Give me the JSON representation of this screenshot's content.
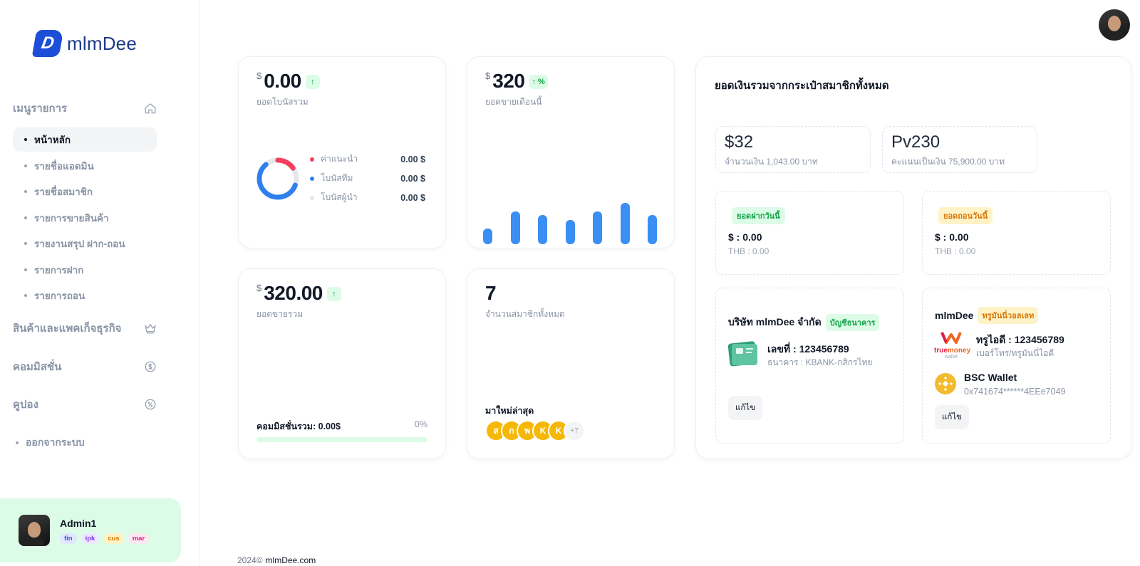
{
  "brand": {
    "name": "mlmDee",
    "logo_letter": "D"
  },
  "sidebar": {
    "sections": [
      {
        "label": "เมนูรายการ",
        "icon": "home-icon"
      },
      {
        "label": "สินค้าและแพคเก็จธุรกิจ",
        "icon": "crown-icon"
      },
      {
        "label": "คอมมิสชั่น",
        "icon": "dollar-circle-icon"
      },
      {
        "label": "คูปอง",
        "icon": "discount-icon"
      }
    ],
    "items": [
      {
        "label": "หน้าหลัก",
        "active": true
      },
      {
        "label": "รายชื่อแอดมิน"
      },
      {
        "label": "รายชื่อสมาชิก"
      },
      {
        "label": "รายการขายสินค้า"
      },
      {
        "label": "รายงานสรุป ฝาก-ถอน"
      },
      {
        "label": "รายการฝาก"
      },
      {
        "label": "รายการถอน"
      }
    ],
    "logout": "ออกจากระบบ"
  },
  "user": {
    "name": "Admin1",
    "tags": [
      {
        "label": "fin",
        "bg": "#e0e7ff",
        "color": "#3b5bdb"
      },
      {
        "label": "ipk",
        "bg": "#ede9fe",
        "color": "#7c3aed"
      },
      {
        "label": "cus",
        "bg": "#fef3c7",
        "color": "#d97706"
      },
      {
        "label": "mar",
        "bg": "#fce7f3",
        "color": "#db2777"
      }
    ]
  },
  "cards": {
    "bonus": {
      "currency": "$",
      "value": "0.00",
      "arrow": "↑",
      "label": "ยอดโบนัสรวม",
      "legend": [
        {
          "label": "ค่าแนะนำ",
          "value": "0.00 $",
          "color": "#f43f5e"
        },
        {
          "label": "โบนัสทีม",
          "value": "0.00 $",
          "color": "#2f80ed"
        },
        {
          "label": "โบนัสผู้นำ",
          "value": "0.00 $",
          "color": "#e5e7eb"
        }
      ]
    },
    "monthly_sales": {
      "currency": "$",
      "value": "320",
      "badge": "↑ %",
      "label": "ยอดขายเดือนนี้",
      "bars": [
        22,
        46,
        41,
        34,
        46,
        58,
        41
      ]
    },
    "total_sales": {
      "currency": "$",
      "value": "320.00",
      "arrow": "↑",
      "label": "ยอดขายรวม",
      "commission_label": "คอมมิสชั่นรวม: 0.00$",
      "commission_pct": "0%",
      "progress": 0
    },
    "members": {
      "value": "7",
      "label": "จำนวนสมาชิกทั้งหมด",
      "latest_label": "มาใหม่ล่าสุด",
      "latest": [
        "ส",
        "ก",
        "พ",
        "K",
        "K"
      ],
      "more": "+7"
    }
  },
  "wallet_panel": {
    "title": "ยอดเงินรวมจากกระเป๋าสมาชิกทั้งหมด",
    "money": {
      "value": "$32",
      "sub": "จำนวนเงิน 1,043.00 บาท"
    },
    "points": {
      "value": "Pv230",
      "sub": "คะแนนเป็นเงิน 75,900.00 บาท"
    },
    "deposit_today": {
      "pill": "ยอดฝากวันนี้",
      "amount": "$ : 0.00",
      "thb": "THB : 0.00"
    },
    "withdraw_today": {
      "pill": "ยอดถอนวันนี้",
      "amount": "$ : 0.00",
      "thb": "THB : 0.00"
    },
    "bank": {
      "company": "บริษัท mlmDee จำกัด",
      "pill": "บัญชีธนาคาร",
      "account": "เลขที่ : 123456789",
      "bank_name": "ธนาคาร : KBANK-กสิกรไทย",
      "edit": "แก้ไข"
    },
    "truemoney": {
      "title": "mlmDee",
      "pill": "ทรูมันนี่วอลเลท",
      "true_id": "ทรูไอดี : 123456789",
      "true_sub": "เบอร์โทร/ทรูมันนี่ไอดี",
      "brand_line1": "true",
      "brand_line2": "money",
      "brand_line3": "wallet",
      "bsc_title": "BSC Wallet",
      "bsc_addr": "0x741674******4EEe7049",
      "edit": "แก้ไข"
    }
  },
  "footer": {
    "year": "2024©",
    "site": "mlmDee.com"
  }
}
